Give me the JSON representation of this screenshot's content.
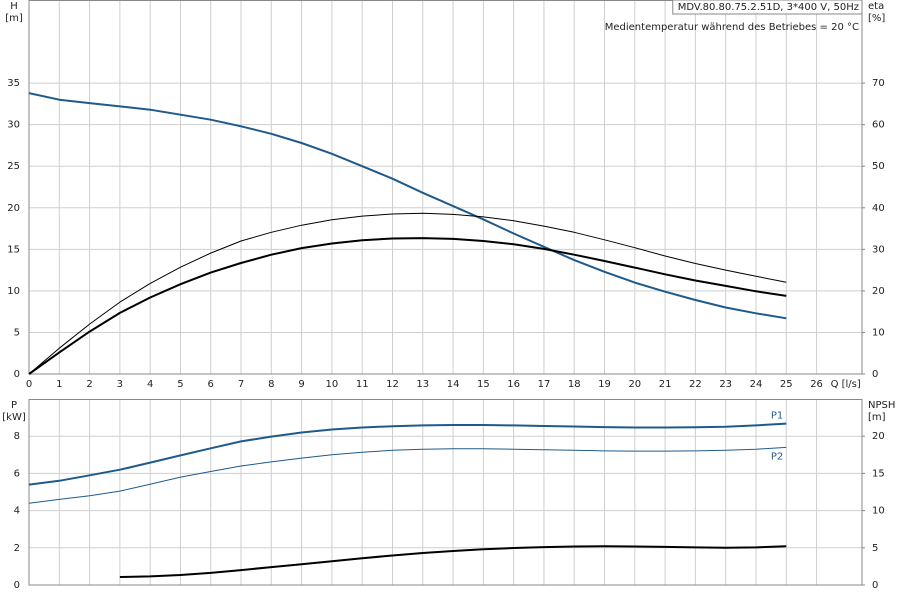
{
  "chart_data": [
    {
      "type": "line",
      "x": [
        0,
        1,
        2,
        3,
        4,
        5,
        6,
        7,
        8,
        9,
        10,
        11,
        12,
        13,
        14,
        15,
        16,
        17,
        18,
        19,
        20,
        21,
        22,
        23,
        24,
        25
      ],
      "xlim": [
        0,
        27.5
      ],
      "xticks": [
        0,
        1,
        2,
        3,
        4,
        5,
        6,
        7,
        8,
        9,
        10,
        11,
        12,
        13,
        14,
        15,
        16,
        17,
        18,
        19,
        20,
        21,
        22,
        23,
        24,
        25,
        26
      ],
      "x_label": "Q [l/s]",
      "ylim": [
        0,
        45
      ],
      "yticks": [
        0,
        5,
        10,
        15,
        20,
        25,
        30,
        35
      ],
      "y_label": "H",
      "y_unit": "[m]",
      "y2lim": [
        0,
        90
      ],
      "y2ticks": [
        0,
        10,
        20,
        30,
        40,
        50,
        60,
        70
      ],
      "y2_label": "eta",
      "y2_unit": "[%]",
      "annotations": [
        "MDV.80.80.75.2.51D, 3*400 V, 50Hz",
        "Medientemperatur während des Betriebes = 20 °C"
      ],
      "grid": true,
      "series": [
        {
          "color": "#1f5a8c",
          "values": [
            33.8,
            33,
            32.6,
            32.2,
            31.8,
            31.2,
            30.6,
            29.8,
            28.9,
            27.8,
            26.5,
            25.0,
            23.5,
            21.8,
            20.2,
            18.6,
            16.9,
            15.3,
            13.7,
            12.3,
            11.0,
            9.9,
            8.9,
            8.0,
            7.3,
            6.7
          ]
        },
        {
          "color": "#000000",
          "axis": "y2",
          "values": [
            0,
            5.2,
            10.2,
            14.7,
            18.4,
            21.6,
            24.4,
            26.7,
            28.7,
            30.3,
            31.4,
            32.2,
            32.6,
            32.7,
            32.5,
            32.0,
            31.2,
            30.1,
            28.7,
            27.2,
            25.6,
            24.0,
            22.5,
            21.2,
            19.9,
            18.8
          ]
        },
        {
          "color": "#000000",
          "axis": "y2",
          "values": [
            0,
            6.2,
            12,
            17.3,
            21.8,
            25.7,
            29.1,
            32,
            34.1,
            35.8,
            37.1,
            38,
            38.5,
            38.7,
            38.4,
            37.8,
            36.9,
            35.6,
            34.1,
            32.3,
            30.4,
            28.4,
            26.6,
            25,
            23.5,
            22.1
          ]
        }
      ]
    },
    {
      "type": "line",
      "x": [
        0,
        1,
        2,
        3,
        4,
        5,
        6,
        7,
        8,
        9,
        10,
        11,
        12,
        13,
        14,
        15,
        16,
        17,
        18,
        19,
        20,
        21,
        22,
        23,
        24,
        25
      ],
      "xlim": [
        0,
        27.5
      ],
      "ylim": [
        0,
        10
      ],
      "yticks": [
        0,
        2,
        4,
        6,
        8
      ],
      "y_label": "P",
      "y_unit": "[kW]",
      "y2lim": [
        0,
        25
      ],
      "y2ticks": [
        0,
        5,
        10,
        15,
        20
      ],
      "y2_label": "NPSH",
      "y2_unit": "[m]",
      "grid": true,
      "series": [
        {
          "name": "P1",
          "color": "#1f5a8c",
          "values": [
            5.4,
            5.6,
            5.9,
            6.2,
            6.58,
            6.97,
            7.35,
            7.72,
            7.98,
            8.2,
            8.36,
            8.47,
            8.54,
            8.58,
            8.6,
            8.6,
            8.58,
            8.55,
            8.52,
            8.49,
            8.47,
            8.47,
            8.48,
            8.51,
            8.58,
            8.68
          ]
        },
        {
          "name": "P2",
          "color": "#1f5a8c",
          "values": [
            4.4,
            4.6,
            4.8,
            5.05,
            5.42,
            5.8,
            6.1,
            6.4,
            6.62,
            6.82,
            7.0,
            7.14,
            7.24,
            7.3,
            7.32,
            7.32,
            7.3,
            7.27,
            7.24,
            7.21,
            7.2,
            7.2,
            7.21,
            7.24,
            7.3,
            7.4
          ]
        },
        {
          "color": "#000000",
          "axis": "y2",
          "values": [
            null,
            null,
            null,
            1.07,
            1.15,
            1.34,
            1.62,
            2.0,
            2.4,
            2.8,
            3.2,
            3.6,
            3.97,
            4.3,
            4.57,
            4.8,
            4.97,
            5.1,
            5.17,
            5.2,
            5.18,
            5.12,
            5.05,
            5.0,
            5.05,
            5.2
          ]
        }
      ]
    }
  ]
}
